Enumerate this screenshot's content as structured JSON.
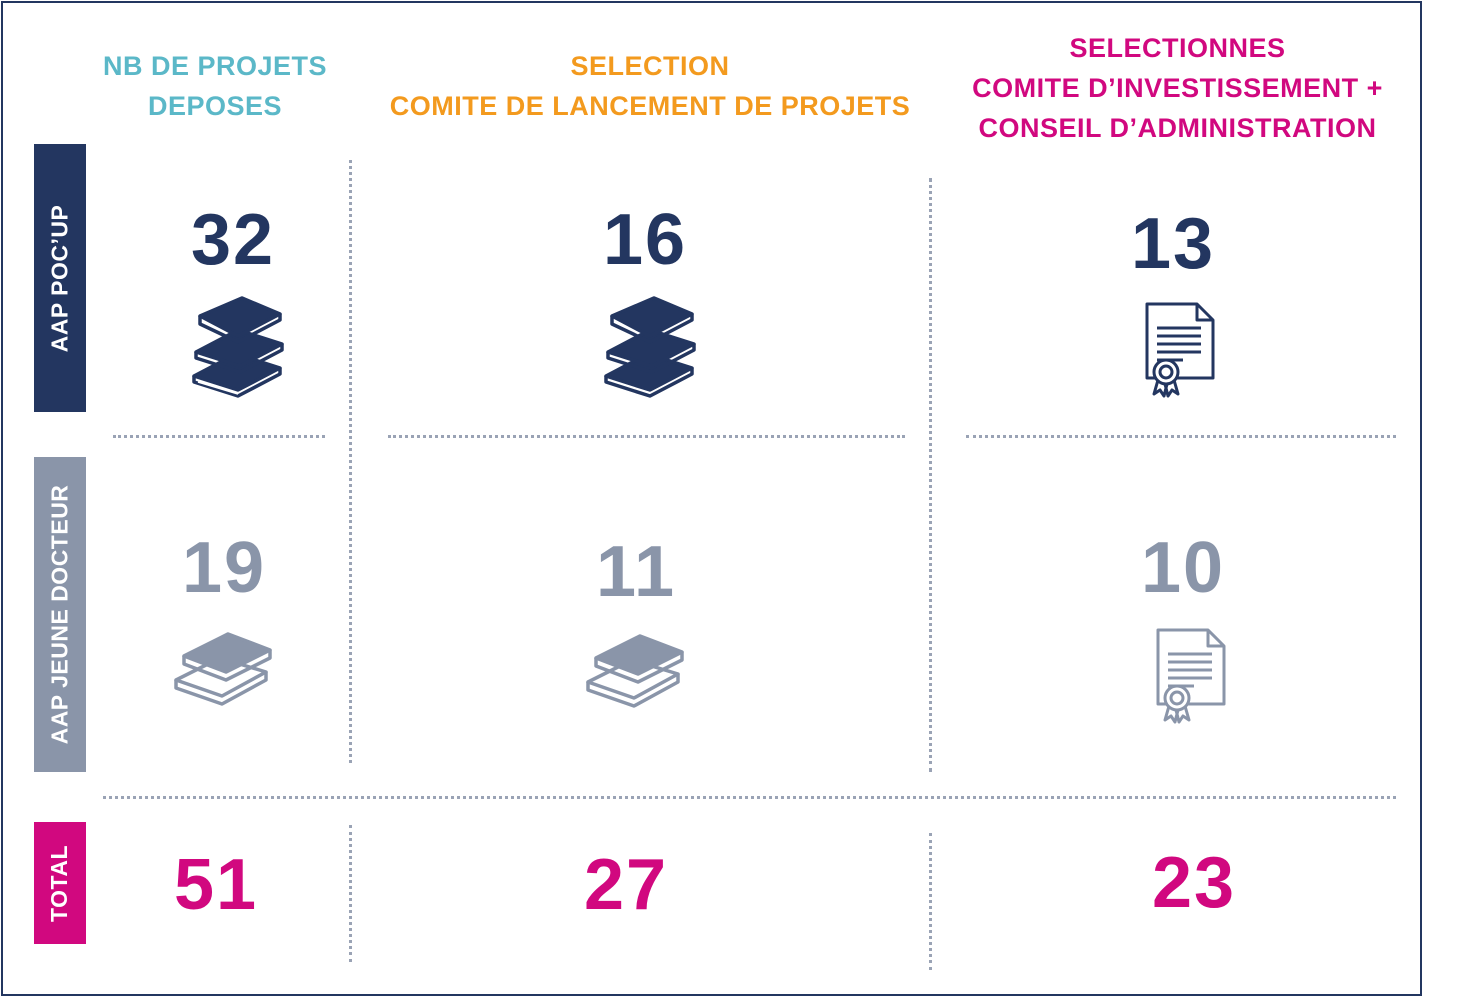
{
  "headers": {
    "col1": [
      "NB DE PROJETS",
      "DEPOSES"
    ],
    "col2": [
      "SELECTION",
      "COMITE DE LANCEMENT DE PROJETS"
    ],
    "col3": [
      "SELECTIONNES",
      "COMITE D’INVESTISSEMENT +",
      "CONSEIL D’ADMINISTRATION"
    ]
  },
  "rows": {
    "pocup": {
      "label": "AAP POC’UP",
      "values": [
        "32",
        "16",
        "13"
      ]
    },
    "jeune": {
      "label": "AAP JEUNE DOCTEUR",
      "values": [
        "19",
        "11",
        "10"
      ]
    },
    "total": {
      "label": "TOTAL",
      "values": [
        "51",
        "27",
        "23"
      ]
    }
  },
  "icons": {
    "pocup": [
      "books-stack-icon",
      "books-stack-icon",
      "certificate-icon"
    ],
    "jeune": [
      "books-pair-icon",
      "books-pair-icon",
      "certificate-icon"
    ]
  },
  "colors": {
    "col1": "#5bb8c8",
    "col2": "#f39a1e",
    "col3": "#d1087f",
    "navy": "#233660",
    "gray": "#8a95a9",
    "magenta": "#d1087f"
  }
}
